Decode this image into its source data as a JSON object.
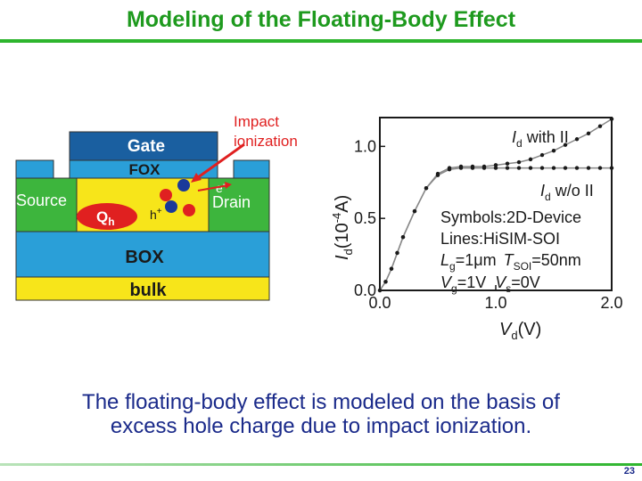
{
  "title": "Modeling of the Floating-Body Effect",
  "device": {
    "gate": "Gate",
    "fox": "FOX",
    "source": "Source",
    "drain": "Drain",
    "box": "BOX",
    "bulk": "bulk",
    "qh_main": "Q",
    "qh_sub": "h",
    "hole": "h",
    "hole_sup": "+",
    "electron": "e",
    "electron_sup": "-",
    "impact_line1": "Impact",
    "impact_line2": "ionization",
    "colors": {
      "gate": "#1a5fa0",
      "fox": "#2a9fd8",
      "body": "#f7e51a",
      "source_drain": "#3db53d",
      "box": "#2a9fd8",
      "bulk": "#f7e51a",
      "hole": "#e02020",
      "electron": "#1a3a9a",
      "arrow": "#e02020"
    }
  },
  "chart_data": {
    "type": "scatter",
    "xlabel_main": "V",
    "xlabel_sub": "d",
    "xlabel_unit": "(V)",
    "ylabel_main": "I",
    "ylabel_sub": "d",
    "ylabel_unit": "(10",
    "ylabel_exp": "-4",
    "ylabel_end": "A)",
    "xlim": [
      0.0,
      2.0
    ],
    "ylim": [
      0.0,
      1.2
    ],
    "x_ticks": [
      "0.0",
      "1.0",
      "2.0"
    ],
    "y_ticks": [
      "0.0",
      "0.5",
      "1.0"
    ],
    "series": [
      {
        "name_main": "I",
        "name_sub": "d",
        "name_rest": " with II",
        "x": [
          0.0,
          0.05,
          0.1,
          0.15,
          0.2,
          0.3,
          0.4,
          0.5,
          0.6,
          0.7,
          0.8,
          0.9,
          1.0,
          1.1,
          1.2,
          1.3,
          1.4,
          1.5,
          1.6,
          1.7,
          1.8,
          1.9,
          2.0
        ],
        "y": [
          0.0,
          0.06,
          0.15,
          0.26,
          0.37,
          0.55,
          0.71,
          0.81,
          0.85,
          0.86,
          0.86,
          0.86,
          0.87,
          0.88,
          0.89,
          0.91,
          0.94,
          0.97,
          1.01,
          1.05,
          1.09,
          1.14,
          1.19
        ]
      },
      {
        "name_main": "I",
        "name_sub": "d",
        "name_rest": " w/o II",
        "x": [
          0.0,
          0.05,
          0.1,
          0.15,
          0.2,
          0.3,
          0.4,
          0.5,
          0.6,
          0.7,
          0.8,
          0.9,
          1.0,
          1.1,
          1.2,
          1.3,
          1.4,
          1.5,
          1.6,
          1.7,
          1.8,
          1.9,
          2.0
        ],
        "y": [
          0.0,
          0.06,
          0.15,
          0.26,
          0.37,
          0.55,
          0.71,
          0.8,
          0.84,
          0.85,
          0.85,
          0.85,
          0.85,
          0.85,
          0.85,
          0.85,
          0.85,
          0.85,
          0.85,
          0.85,
          0.85,
          0.85,
          0.85
        ]
      }
    ],
    "legend": {
      "symbols": "Symbols:2D-Device",
      "lines": "Lines:HiSIM-SOI",
      "lg_main": "L",
      "lg_sub": "g",
      "lg_val": "=1μm",
      "tsoi_main": "T",
      "tsoi_sub": "SOI",
      "tsoi_val": "=50nm",
      "vg_main": "V",
      "vg_sub": "g",
      "vg_val": "=1V",
      "vs_main": "V",
      "vs_sub": "s",
      "vs_val": "=0V"
    }
  },
  "caption": {
    "line1": "The floating-body effect is modeled on the basis of",
    "line2": "excess hole charge due to impact ionization."
  },
  "page_number": "23"
}
